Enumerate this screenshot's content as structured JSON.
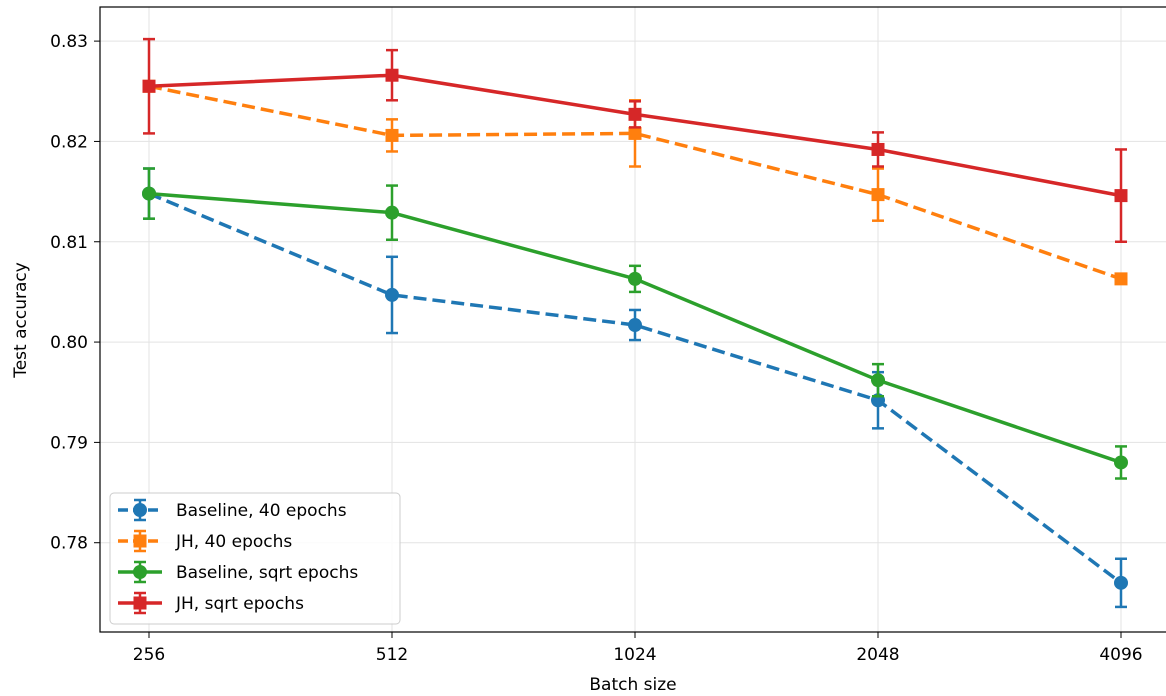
{
  "chart_data": {
    "type": "line",
    "title": "",
    "xlabel": "Batch size",
    "ylabel": "Test accuracy",
    "x": [
      256,
      512,
      1024,
      2048,
      4096
    ],
    "x_tick_labels": [
      "256",
      "512",
      "1024",
      "2048",
      "4096"
    ],
    "x_scale": "log2",
    "ylim": [
      0.7711,
      0.8334
    ],
    "y_ticks": [
      0.78,
      0.79,
      0.8,
      0.81,
      0.82,
      0.83
    ],
    "y_tick_labels": [
      "0.78",
      "0.79",
      "0.80",
      "0.81",
      "0.82",
      "0.83"
    ],
    "grid": true,
    "legend_position": "lower-left",
    "series": [
      {
        "name": "Baseline, 40 epochs",
        "color": "#1f77b4",
        "line_style": "dashed",
        "marker": "circle",
        "values": [
          0.8148,
          0.8047,
          0.8017,
          0.7942,
          0.776
        ],
        "errors": [
          0.0025,
          0.0038,
          0.0015,
          0.0028,
          0.0024
        ]
      },
      {
        "name": "JH, 40 epochs",
        "color": "#ff7f0e",
        "line_style": "dashed",
        "marker": "square",
        "values": [
          0.8255,
          0.8206,
          0.8208,
          0.8147,
          0.8063
        ],
        "errors": [
          0.0,
          0.0016,
          0.0033,
          0.0026,
          0.0004
        ]
      },
      {
        "name": "Baseline, sqrt epochs",
        "color": "#2ca02c",
        "line_style": "solid",
        "marker": "circle",
        "values": [
          0.8148,
          0.8129,
          0.8063,
          0.7962,
          0.788
        ],
        "errors": [
          0.0025,
          0.0027,
          0.0013,
          0.0016,
          0.0016
        ]
      },
      {
        "name": "JH, sqrt epochs",
        "color": "#d62728",
        "line_style": "solid",
        "marker": "square",
        "values": [
          0.8255,
          0.8266,
          0.8227,
          0.8192,
          0.8146
        ],
        "errors": [
          0.0047,
          0.0025,
          0.0013,
          0.0017,
          0.0046
        ]
      }
    ]
  }
}
